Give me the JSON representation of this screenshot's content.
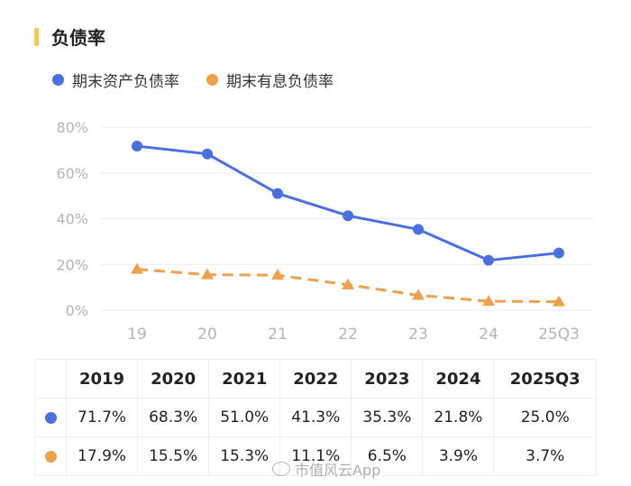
{
  "page": {
    "title": "负债率",
    "title_accent": "#f6c54a",
    "watermark": "市值风云App",
    "watermark_icon": "weibo-icon"
  },
  "legend": [
    {
      "label": "期末资产负债率",
      "color": "#4a6fe0"
    },
    {
      "label": "期末有息负债率",
      "color": "#f0a04b"
    }
  ],
  "chart_data": {
    "type": "line",
    "categories": [
      "19",
      "20",
      "21",
      "22",
      "23",
      "24",
      "25Q3"
    ],
    "y_ticks": [
      "0%",
      "20%",
      "40%",
      "60%",
      "80%"
    ],
    "ylim": [
      0,
      80
    ],
    "grid": true,
    "legend_position": "top-left",
    "series": [
      {
        "name": "期末资产负债率",
        "values": [
          71.7,
          68.3,
          51.0,
          41.3,
          35.3,
          21.8,
          25.0
        ],
        "color": "#4a6fe0",
        "marker": "circle",
        "line": "solid"
      },
      {
        "name": "期末有息负债率",
        "values": [
          17.9,
          15.5,
          15.3,
          11.1,
          6.5,
          3.9,
          3.7
        ],
        "color": "#f0a04b",
        "marker": "triangle",
        "line": "dashed"
      }
    ]
  },
  "table": {
    "headers": [
      "2019",
      "2020",
      "2021",
      "2022",
      "2023",
      "2024",
      "2025Q3"
    ],
    "rows": [
      {
        "color": "#4a6fe0",
        "values": [
          "71.7%",
          "68.3%",
          "51.0%",
          "41.3%",
          "35.3%",
          "21.8%",
          "25.0%"
        ]
      },
      {
        "color": "#f0a04b",
        "values": [
          "17.9%",
          "15.5%",
          "15.3%",
          "11.1%",
          "6.5%",
          "3.9%",
          "3.7%"
        ]
      }
    ]
  }
}
